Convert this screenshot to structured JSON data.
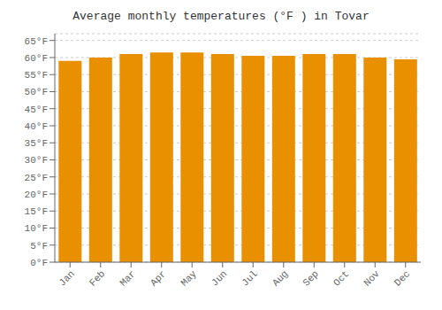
{
  "chart_data": {
    "type": "bar",
    "title": "Average monthly temperatures (°F ) in Tovar",
    "categories": [
      "Jan",
      "Feb",
      "Mar",
      "Apr",
      "May",
      "Jun",
      "Jul",
      "Aug",
      "Sep",
      "Oct",
      "Nov",
      "Dec"
    ],
    "values": [
      59.0,
      60.0,
      61.0,
      61.5,
      61.5,
      61.0,
      60.5,
      60.5,
      61.0,
      61.0,
      60.0,
      59.5
    ],
    "color": "#E89000",
    "ylim": [
      0,
      67
    ],
    "yticks": [
      {
        "value": 0,
        "label": "0°F"
      },
      {
        "value": 5,
        "label": "5°F"
      },
      {
        "value": 10,
        "label": "10°F"
      },
      {
        "value": 15,
        "label": "15°F"
      },
      {
        "value": 20,
        "label": "20°F"
      },
      {
        "value": 25,
        "label": "25°F"
      },
      {
        "value": 30,
        "label": "30°F"
      },
      {
        "value": 35,
        "label": "35°F"
      },
      {
        "value": 40,
        "label": "40°F"
      },
      {
        "value": 45,
        "label": "45°F"
      },
      {
        "value": 50,
        "label": "50°F"
      },
      {
        "value": 55,
        "label": "55°F"
      },
      {
        "value": 60,
        "label": "60°F"
      },
      {
        "value": 65,
        "label": "65°F"
      }
    ],
    "grid": true
  }
}
